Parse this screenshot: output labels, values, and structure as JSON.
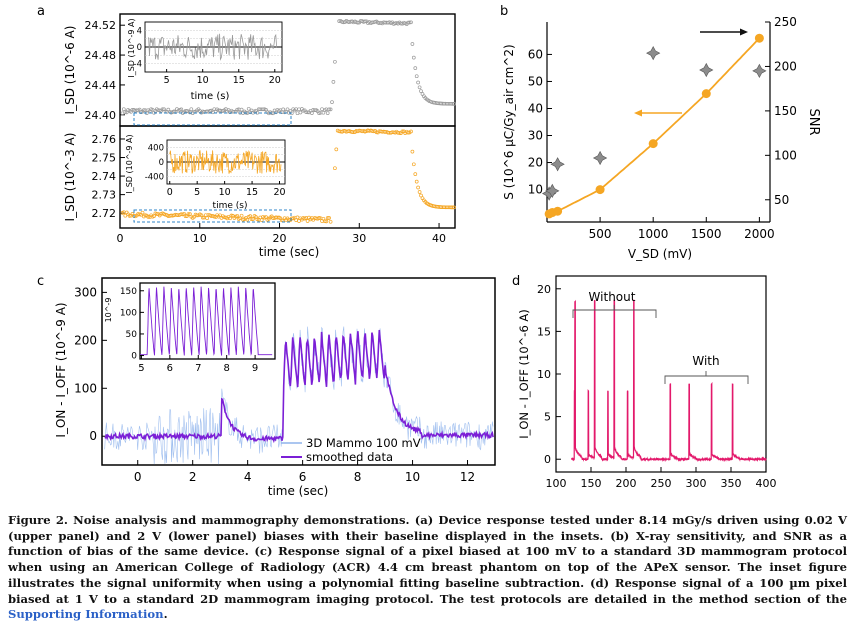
{
  "figure": {
    "panels": {
      "a": "a",
      "b": "b",
      "c": "c",
      "d": "d"
    },
    "colors": {
      "gray": "#9a9a9a",
      "orange": "#f5a623",
      "blue": "#8fb4ec",
      "purple": "#7b1fd6",
      "pink": "#e3196b",
      "star": "#8c8c8c"
    }
  },
  "chart_data": [
    {
      "id": "a-upper",
      "type": "scatter",
      "xlim": [
        0,
        42
      ],
      "ylim": [
        24.385,
        24.535
      ],
      "yticks": [
        "24.40",
        "24.44",
        "24.48",
        "24.52"
      ],
      "ylabel": "I_SD (10^-6 A)",
      "baseline": 24.405,
      "high": 24.525,
      "rise_at": 26.5,
      "fall_at": 36.5,
      "inset": {
        "xticks": [
          "5",
          "10",
          "15",
          "20"
        ],
        "yticks": [
          "4",
          "0",
          "-4"
        ],
        "xlabel": "time (s)",
        "ylabel": "I_SD (10^-9 A)"
      }
    },
    {
      "id": "a-lower",
      "type": "scatter",
      "xlim": [
        0,
        42
      ],
      "ylim": [
        2.712,
        2.767
      ],
      "yticks": [
        "2.76",
        "2.75",
        "2.74",
        "2.73",
        "2.72"
      ],
      "xticks": [
        "0",
        "10",
        "20",
        "30",
        "40"
      ],
      "ylabel": "I_SD (10^-3 A)",
      "xlabel": "time (sec)",
      "baseline": 2.7195,
      "high": 2.7645,
      "rise_at": 26.5,
      "fall_at": 36.5,
      "inset": {
        "xticks": [
          "0",
          "5",
          "10",
          "15",
          "20"
        ],
        "yticks": [
          "400",
          "0",
          "-400"
        ],
        "xlabel": "time (s)",
        "ylabel": "I_SD (10^-9 A)"
      }
    },
    {
      "id": "b",
      "type": "line",
      "xlim": [
        0,
        2100
      ],
      "xticks": [
        "500",
        "1000",
        "1500",
        "2000"
      ],
      "xlabel": "V_SD (mV)",
      "series": [
        {
          "name": "S",
          "axis": "left",
          "x": [
            20,
            50,
            100,
            500,
            1000,
            1500,
            2000
          ],
          "values": [
            1.0,
            1.5,
            2.0,
            10.0,
            27.0,
            45.5,
            66.0
          ]
        },
        {
          "name": "SNR",
          "axis": "right",
          "x": [
            20,
            50,
            100,
            500,
            1000,
            1500,
            2000
          ],
          "values": [
            57,
            60,
            90,
            97,
            215,
            196,
            195
          ]
        }
      ],
      "left": {
        "ylim": [
          -2,
          72
        ],
        "yticks": [
          "60",
          "50",
          "40",
          "30",
          "20",
          "10"
        ],
        "ylabel": "S (10^6 µC/Gy_air cm^2)"
      },
      "right": {
        "ylim": [
          25,
          250
        ],
        "yticks": [
          "250",
          "200",
          "150",
          "100",
          "50"
        ],
        "ylabel": "SNR"
      }
    },
    {
      "id": "c",
      "type": "line",
      "xlim": [
        -1.3,
        13
      ],
      "ylim": [
        -60,
        330
      ],
      "xticks": [
        "0",
        "2",
        "4",
        "6",
        "8",
        "10",
        "12"
      ],
      "yticks": [
        "300",
        "200",
        "100",
        "0"
      ],
      "xlabel": "time (sec)",
      "ylabel": "I_ON - I_OFF (10^-9 A)",
      "legend": [
        "3D Mammo 100 mV",
        "smoothed data"
      ],
      "inset": {
        "xticks": [
          "5",
          "6",
          "7",
          "8",
          "9"
        ],
        "yticks": [
          "150",
          "100",
          "50",
          "0"
        ],
        "ylabel": "10^-9"
      }
    },
    {
      "id": "d",
      "type": "line",
      "xlim": [
        100,
        400
      ],
      "ylim": [
        -1.5,
        21.5
      ],
      "xticks": [
        "100",
        "150",
        "200",
        "250",
        "300",
        "350",
        "400"
      ],
      "yticks": [
        "20",
        "15",
        "10",
        "5",
        "0"
      ],
      "ylabel": "I_ON - I_OFF (10^-6 A)",
      "annotations": [
        "Without",
        "With"
      ],
      "peaks_without": [
        127,
        155,
        183,
        211
      ],
      "peaks_with": [
        263,
        290,
        322,
        352
      ]
    }
  ],
  "caption": {
    "lead": "Figure 2. Noise analysis and mammography demonstrations. (a) Device response tested under 8.14 mGy/s driven using 0.02 V (upper panel) and 2 V (lower panel) biases with their baseline displayed in the insets. (b) X-ray sensitivity, and SNR as a function of bias of the same device. (c) Response signal of a pixel biased at 100 mV to a standard 3D mammogram protocol when using an American College of Radiology (ACR) 4.4 cm breast phantom on top of the APeX sensor. The inset figure illustrates the signal uniformity when using a polynomial fitting baseline subtraction. (d) Response signal of a 100 µm pixel biased at 1 V to a standard 2D mammogram imaging protocol. The test protocols are detailed in the method section of the",
    "link": "Supporting Information",
    "end": "."
  }
}
